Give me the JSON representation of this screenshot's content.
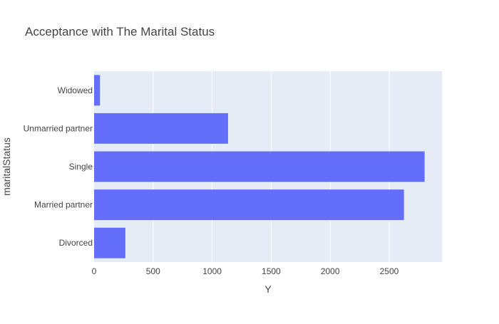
{
  "chart_data": {
    "type": "bar",
    "orientation": "horizontal",
    "title": "Acceptance with The Marital Status",
    "xlabel": "Y",
    "ylabel": "maritalStatus",
    "categories": [
      "Divorced",
      "Married partner",
      "Single",
      "Unmarried partner",
      "Widowed"
    ],
    "values": [
      265,
      2625,
      2800,
      1135,
      50
    ],
    "xlim": [
      0,
      2947
    ],
    "xticks": [
      0,
      500,
      1000,
      1500,
      2000,
      2500
    ],
    "grid": true,
    "legend": "none",
    "colors": {
      "bar": "#636efa",
      "plot_background": "#e5ecf6",
      "gridline": "#ffffff",
      "text": "#444444"
    }
  }
}
